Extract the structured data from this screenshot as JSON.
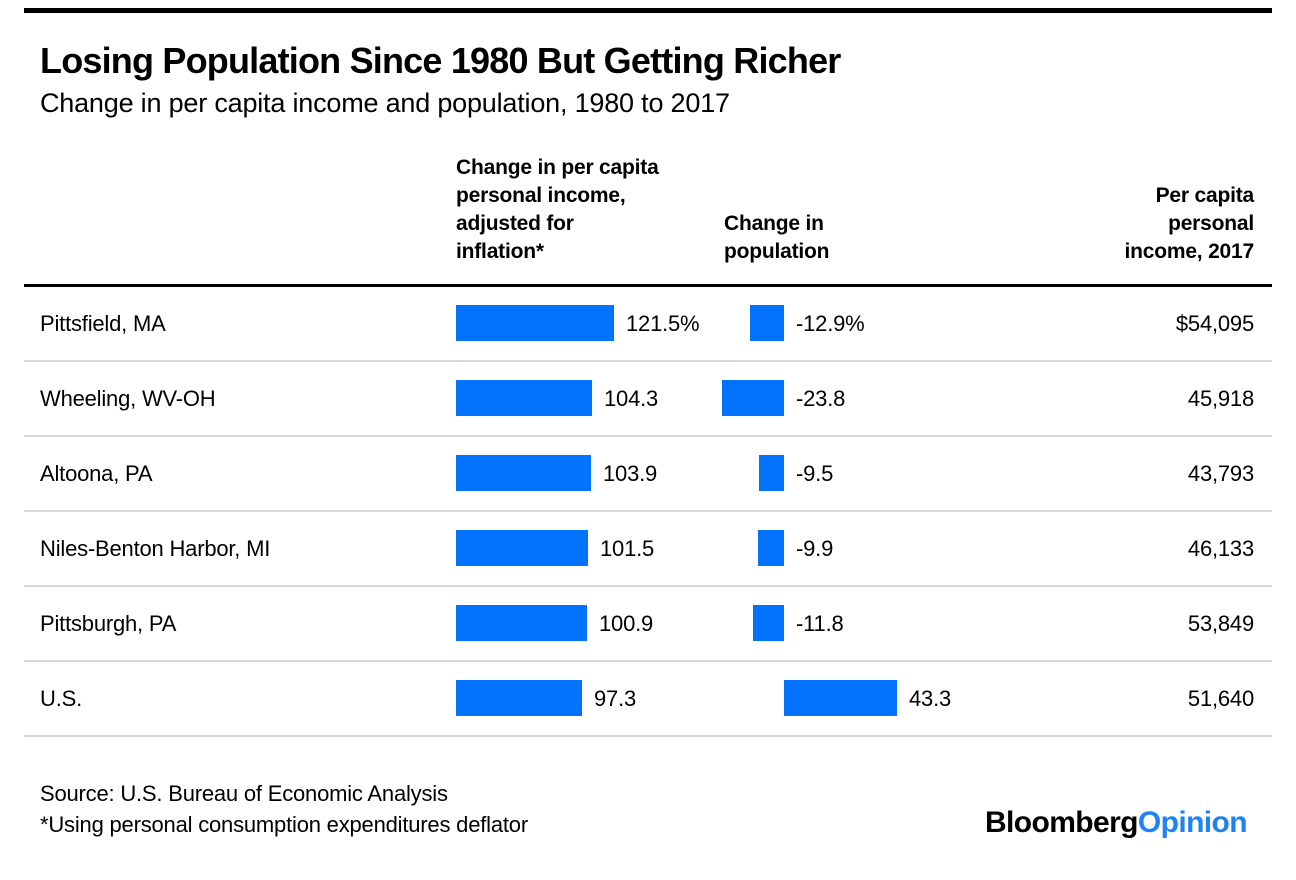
{
  "colors": {
    "bar_blue": "#0273fa",
    "logo_blue": "#1e82f6",
    "rule_black": "#000000",
    "separator_gray": "#d9d9d9"
  },
  "header": {
    "title": "Losing Population Since 1980 But Getting Richer",
    "subtitle": "Change in per capita income and population, 1980 to 2017"
  },
  "columns": {
    "income_header": "Change in per capita\npersonal income,\nadjusted for\ninflation*",
    "population_header": "Change in\npopulation",
    "income2017_header": "Per capita\npersonal\nincome, 2017"
  },
  "rows": [
    {
      "label": "Pittsfield, MA",
      "income_label": "121.5%",
      "pop_label": "-12.9%",
      "income2017": "$54,095"
    },
    {
      "label": "Wheeling, WV-OH",
      "income_label": "104.3",
      "pop_label": "-23.8",
      "income2017": "45,918"
    },
    {
      "label": "Altoona, PA",
      "income_label": "103.9",
      "pop_label": "-9.5",
      "income2017": "43,793"
    },
    {
      "label": "Niles-Benton Harbor, MI",
      "income_label": "101.5",
      "pop_label": "-9.9",
      "income2017": "46,133"
    },
    {
      "label": "Pittsburgh, PA",
      "income_label": "100.9",
      "pop_label": "-11.8",
      "income2017": "53,849"
    },
    {
      "label": "U.S.",
      "income_label": "97.3",
      "pop_label": "43.3",
      "income2017": "51,640"
    }
  ],
  "chart_data": {
    "type": "bar",
    "title": "Losing Population Since 1980 But Getting Richer",
    "subtitle": "Change in per capita income and population, 1980 to 2017",
    "categories": [
      "Pittsfield, MA",
      "Wheeling, WV-OH",
      "Altoona, PA",
      "Niles-Benton Harbor, MI",
      "Pittsburgh, PA",
      "U.S."
    ],
    "series": [
      {
        "name": "Change in per capita personal income, adjusted for inflation*",
        "unit": "%",
        "values": [
          121.5,
          104.3,
          103.9,
          101.5,
          100.9,
          97.3
        ]
      },
      {
        "name": "Change in population",
        "unit": "%",
        "values": [
          -12.9,
          -23.8,
          -9.5,
          -9.9,
          -11.8,
          43.3
        ]
      },
      {
        "name": "Per capita personal income, 2017",
        "unit": "$",
        "values": [
          54095,
          45918,
          43793,
          46133,
          53849,
          51640
        ]
      }
    ],
    "layout": {
      "orientation": "horizontal",
      "grid": false,
      "legend": false,
      "value_labels": true
    },
    "source": "Source: U.S. Bureau of Economic Analysis",
    "footnote": "*Using personal consumption expenditures deflator"
  },
  "footer": {
    "source": "Source: U.S. Bureau of Economic Analysis",
    "footnote": "*Using personal consumption expenditures deflator",
    "logo_black": "Bloomberg",
    "logo_blue": "Opinion"
  }
}
